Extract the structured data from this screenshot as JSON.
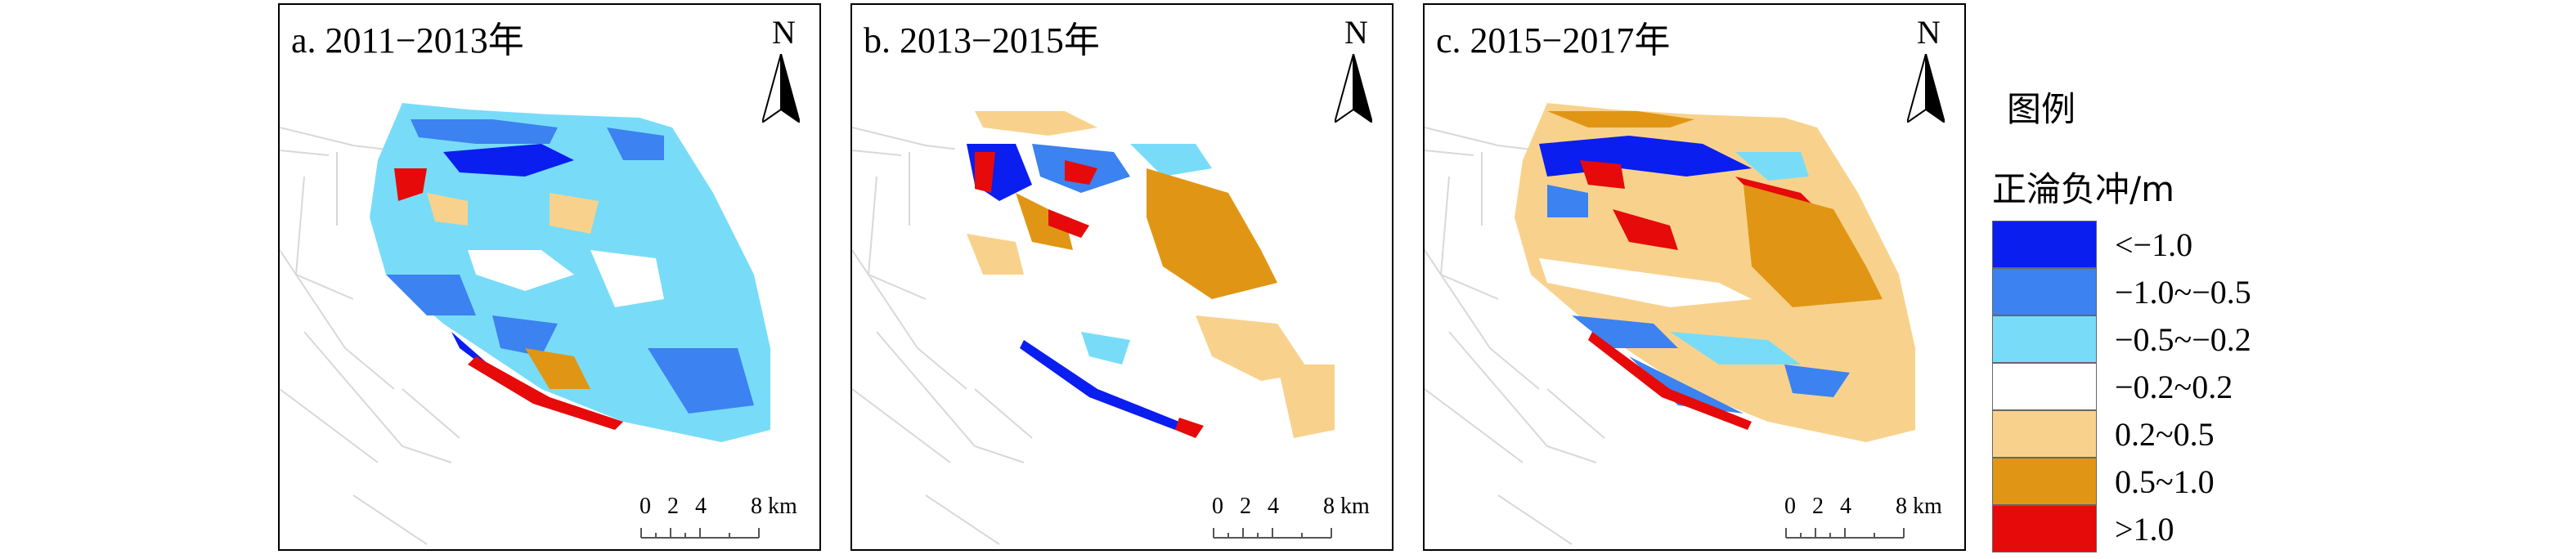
{
  "panels": [
    {
      "title": "a. 2011−2013年",
      "north": "N",
      "scale_ticks": [
        "0",
        "2",
        "4",
        "8 km"
      ]
    },
    {
      "title": "b. 2013−2015年",
      "north": "N",
      "scale_ticks": [
        "0",
        "2",
        "4",
        "8 km"
      ]
    },
    {
      "title": "c. 2015−2017年",
      "north": "N",
      "scale_ticks": [
        "0",
        "2",
        "4",
        "8 km"
      ]
    }
  ],
  "legend": {
    "title": "图例",
    "subtitle": "正淪负冲/m",
    "items": [
      {
        "label": "<−1.0",
        "color": "#0a1ef0"
      },
      {
        "label": "−1.0~−0.5",
        "color": "#3c82f0"
      },
      {
        "label": "−0.5~−0.2",
        "color": "#78dcf8"
      },
      {
        "label": "−0.2~0.2",
        "color": "#ffffff"
      },
      {
        "label": "0.2~0.5",
        "color": "#f8d28c"
      },
      {
        "label": "0.5~1.0",
        "color": "#e09614"
      },
      {
        "label": ">1.0",
        "color": "#e60a0a"
      }
    ]
  }
}
